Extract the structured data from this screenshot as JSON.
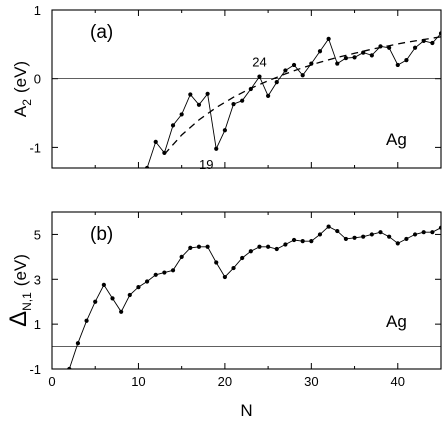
{
  "chart_data": [
    {
      "panel": "a",
      "type": "line",
      "panel_label": "(a)",
      "element_label": "Ag",
      "ylabel": "A₂ (eV)",
      "ylabel_base": "A",
      "ylabel_sub": "2",
      "ylabel_unit": "(eV)",
      "xlabel": "",
      "xlim": [
        0,
        45
      ],
      "ylim": [
        -1.3,
        1.0
      ],
      "yticks": [
        -1,
        0,
        1
      ],
      "ytick_labels": [
        "-1",
        "0",
        "1"
      ],
      "reference_line_y": 0,
      "annotations": [
        {
          "text": "24",
          "x": 24,
          "y": 0.03
        },
        {
          "text": "19",
          "x": 19,
          "y": -1.02
        }
      ],
      "series": [
        {
          "style": "markers-line",
          "x": [
            11,
            12,
            13,
            14,
            15,
            16,
            17,
            18,
            19,
            20,
            21,
            22,
            23,
            24,
            25,
            26,
            27,
            28,
            29,
            30,
            31,
            32,
            33,
            34,
            35,
            36,
            37,
            38,
            39,
            40,
            41,
            42,
            43,
            44,
            45
          ],
          "y": [
            -1.3,
            -0.92,
            -1.08,
            -0.68,
            -0.52,
            -0.23,
            -0.38,
            -0.22,
            -1.02,
            -0.75,
            -0.37,
            -0.32,
            -0.15,
            0.03,
            -0.25,
            -0.05,
            0.12,
            0.2,
            0.05,
            0.22,
            0.4,
            0.58,
            0.22,
            0.3,
            0.31,
            0.38,
            0.34,
            0.47,
            0.45,
            0.2,
            0.27,
            0.45,
            0.55,
            0.52,
            0.66
          ]
        },
        {
          "style": "dashed",
          "x": [
            13,
            15,
            17,
            19,
            21,
            23,
            25,
            27,
            29,
            31,
            33,
            35,
            37,
            39,
            41,
            43,
            45
          ],
          "y": [
            -1.1,
            -0.82,
            -0.6,
            -0.42,
            -0.27,
            -0.14,
            -0.03,
            0.07,
            0.16,
            0.24,
            0.31,
            0.37,
            0.43,
            0.48,
            0.53,
            0.57,
            0.61
          ]
        }
      ]
    },
    {
      "panel": "b",
      "type": "line",
      "panel_label": "(b)",
      "element_label": "Ag",
      "ylabel": "Δ_N,1 (eV)",
      "ylabel_base": "Δ",
      "ylabel_sub": "N,1",
      "ylabel_unit": "(eV)",
      "xlabel": "N",
      "xlim": [
        0,
        45
      ],
      "ylim": [
        -1,
        6
      ],
      "xticks": [
        0,
        10,
        20,
        30,
        40
      ],
      "xtick_labels": [
        "0",
        "10",
        "20",
        "30",
        "40"
      ],
      "yticks": [
        -1,
        1,
        3,
        5
      ],
      "ytick_labels": [
        "-1",
        "1",
        "3",
        "5"
      ],
      "reference_line_y": 0,
      "series": [
        {
          "style": "markers-line",
          "x": [
            2,
            3,
            4,
            5,
            6,
            7,
            8,
            9,
            10,
            11,
            12,
            13,
            14,
            15,
            16,
            17,
            18,
            19,
            20,
            21,
            22,
            23,
            24,
            25,
            26,
            27,
            28,
            29,
            30,
            31,
            32,
            33,
            34,
            35,
            36,
            37,
            38,
            39,
            40,
            41,
            42,
            43,
            44,
            45
          ],
          "y": [
            -1.0,
            0.15,
            1.15,
            2.0,
            2.75,
            2.15,
            1.55,
            2.3,
            2.65,
            2.9,
            3.2,
            3.3,
            3.4,
            4.0,
            4.4,
            4.45,
            4.45,
            3.75,
            3.1,
            3.5,
            3.95,
            4.25,
            4.45,
            4.45,
            4.35,
            4.55,
            4.75,
            4.7,
            4.7,
            5.0,
            5.35,
            5.15,
            4.8,
            4.85,
            4.9,
            5.0,
            5.1,
            4.9,
            4.6,
            4.8,
            5.0,
            5.1,
            5.1,
            5.3
          ]
        }
      ]
    }
  ]
}
